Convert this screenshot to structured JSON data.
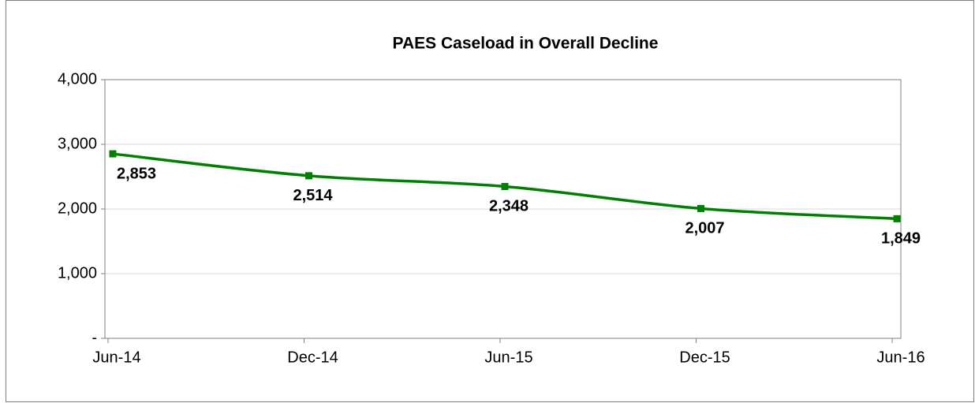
{
  "chart_data": {
    "type": "line",
    "title": "PAES Caseload in Overall Decline",
    "categories": [
      "Jun-14",
      "Dec-14",
      "Jun-15",
      "Dec-15",
      "Jun-16"
    ],
    "series": [
      {
        "color": "#008000",
        "values": [
          2853,
          2514,
          2348,
          2007,
          1849
        ],
        "value_labels": [
          "2,853",
          "2,514",
          "2,348",
          "2,007",
          "1,849"
        ]
      }
    ],
    "ylim": [
      0,
      4000
    ],
    "yticks": [
      {
        "value": 0,
        "label": "-"
      },
      {
        "value": 1000,
        "label": "1,000"
      },
      {
        "value": 2000,
        "label": "2,000"
      },
      {
        "value": 3000,
        "label": "3,000"
      },
      {
        "value": 4000,
        "label": "4,000"
      }
    ],
    "grid": true
  }
}
